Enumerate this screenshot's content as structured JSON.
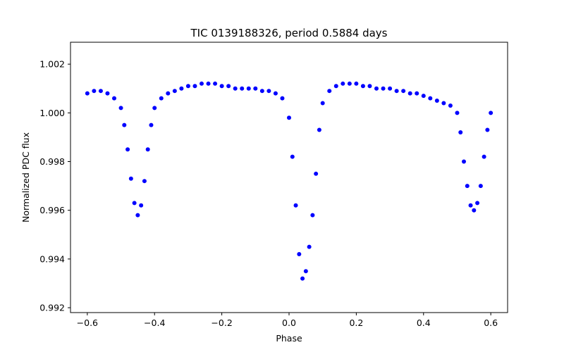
{
  "chart_data": {
    "type": "scatter",
    "title": "TIC 0139188326, period 0.5884 days",
    "xlabel": "Phase",
    "ylabel": "Normalized PDC flux",
    "xlim": [
      -0.65,
      0.65
    ],
    "ylim": [
      0.9918,
      1.0029
    ],
    "xticks": [
      -0.6,
      -0.4,
      -0.2,
      0.0,
      0.2,
      0.4,
      0.6
    ],
    "xtick_labels": [
      "−0.6",
      "−0.4",
      "−0.2",
      "0.0",
      "0.2",
      "0.4",
      "0.6"
    ],
    "yticks": [
      0.992,
      0.994,
      0.996,
      0.998,
      1.0,
      1.002
    ],
    "ytick_labels": [
      "0.992",
      "0.994",
      "0.996",
      "0.998",
      "1.000",
      "1.002"
    ],
    "grid": false,
    "marker_color": "#0000ff",
    "series": [
      {
        "x": [
          -0.6,
          -0.58,
          -0.56,
          -0.54,
          -0.52,
          -0.5,
          -0.49,
          -0.48,
          -0.47,
          -0.46,
          -0.45,
          -0.44,
          -0.43,
          -0.42,
          -0.41,
          -0.4,
          -0.38,
          -0.36,
          -0.34,
          -0.32,
          -0.3,
          -0.28,
          -0.26,
          -0.24,
          -0.22,
          -0.2,
          -0.18,
          -0.16,
          -0.14,
          -0.12,
          -0.1,
          -0.08,
          -0.06,
          -0.04,
          -0.02,
          0.0,
          0.01,
          0.02,
          0.03,
          0.04,
          0.05,
          0.06,
          0.07,
          0.08,
          0.09,
          0.1,
          0.12,
          0.14,
          0.16,
          0.18,
          0.2,
          0.22,
          0.24,
          0.26,
          0.28,
          0.3,
          0.32,
          0.34,
          0.36,
          0.38,
          0.4,
          0.42,
          0.44,
          0.46,
          0.48,
          0.5,
          0.51,
          0.52,
          0.53,
          0.54,
          0.55,
          0.56,
          0.57,
          0.58,
          0.59,
          0.6
        ],
        "y": [
          1.0008,
          1.0009,
          1.0009,
          1.0008,
          1.0006,
          1.0002,
          0.9995,
          0.9985,
          0.9973,
          0.9963,
          0.9958,
          0.9962,
          0.9972,
          0.9985,
          0.9995,
          1.0002,
          1.0006,
          1.0008,
          1.0009,
          1.001,
          1.0011,
          1.0011,
          1.0012,
          1.0012,
          1.0012,
          1.0011,
          1.0011,
          1.001,
          1.001,
          1.001,
          1.001,
          1.0009,
          1.0009,
          1.0008,
          1.0006,
          0.9998,
          0.9982,
          0.9962,
          0.9942,
          0.9932,
          0.9935,
          0.9945,
          0.9958,
          0.9975,
          0.9993,
          1.0004,
          1.0009,
          1.0011,
          1.0012,
          1.0012,
          1.0012,
          1.0011,
          1.0011,
          1.001,
          1.001,
          1.001,
          1.0009,
          1.0009,
          1.0008,
          1.0008,
          1.0007,
          1.0006,
          1.0005,
          1.0004,
          1.0003,
          1.0,
          0.9992,
          0.998,
          0.997,
          0.9962,
          0.996,
          0.9963,
          0.997,
          0.9982,
          0.9993,
          1.0
        ]
      }
    ]
  }
}
